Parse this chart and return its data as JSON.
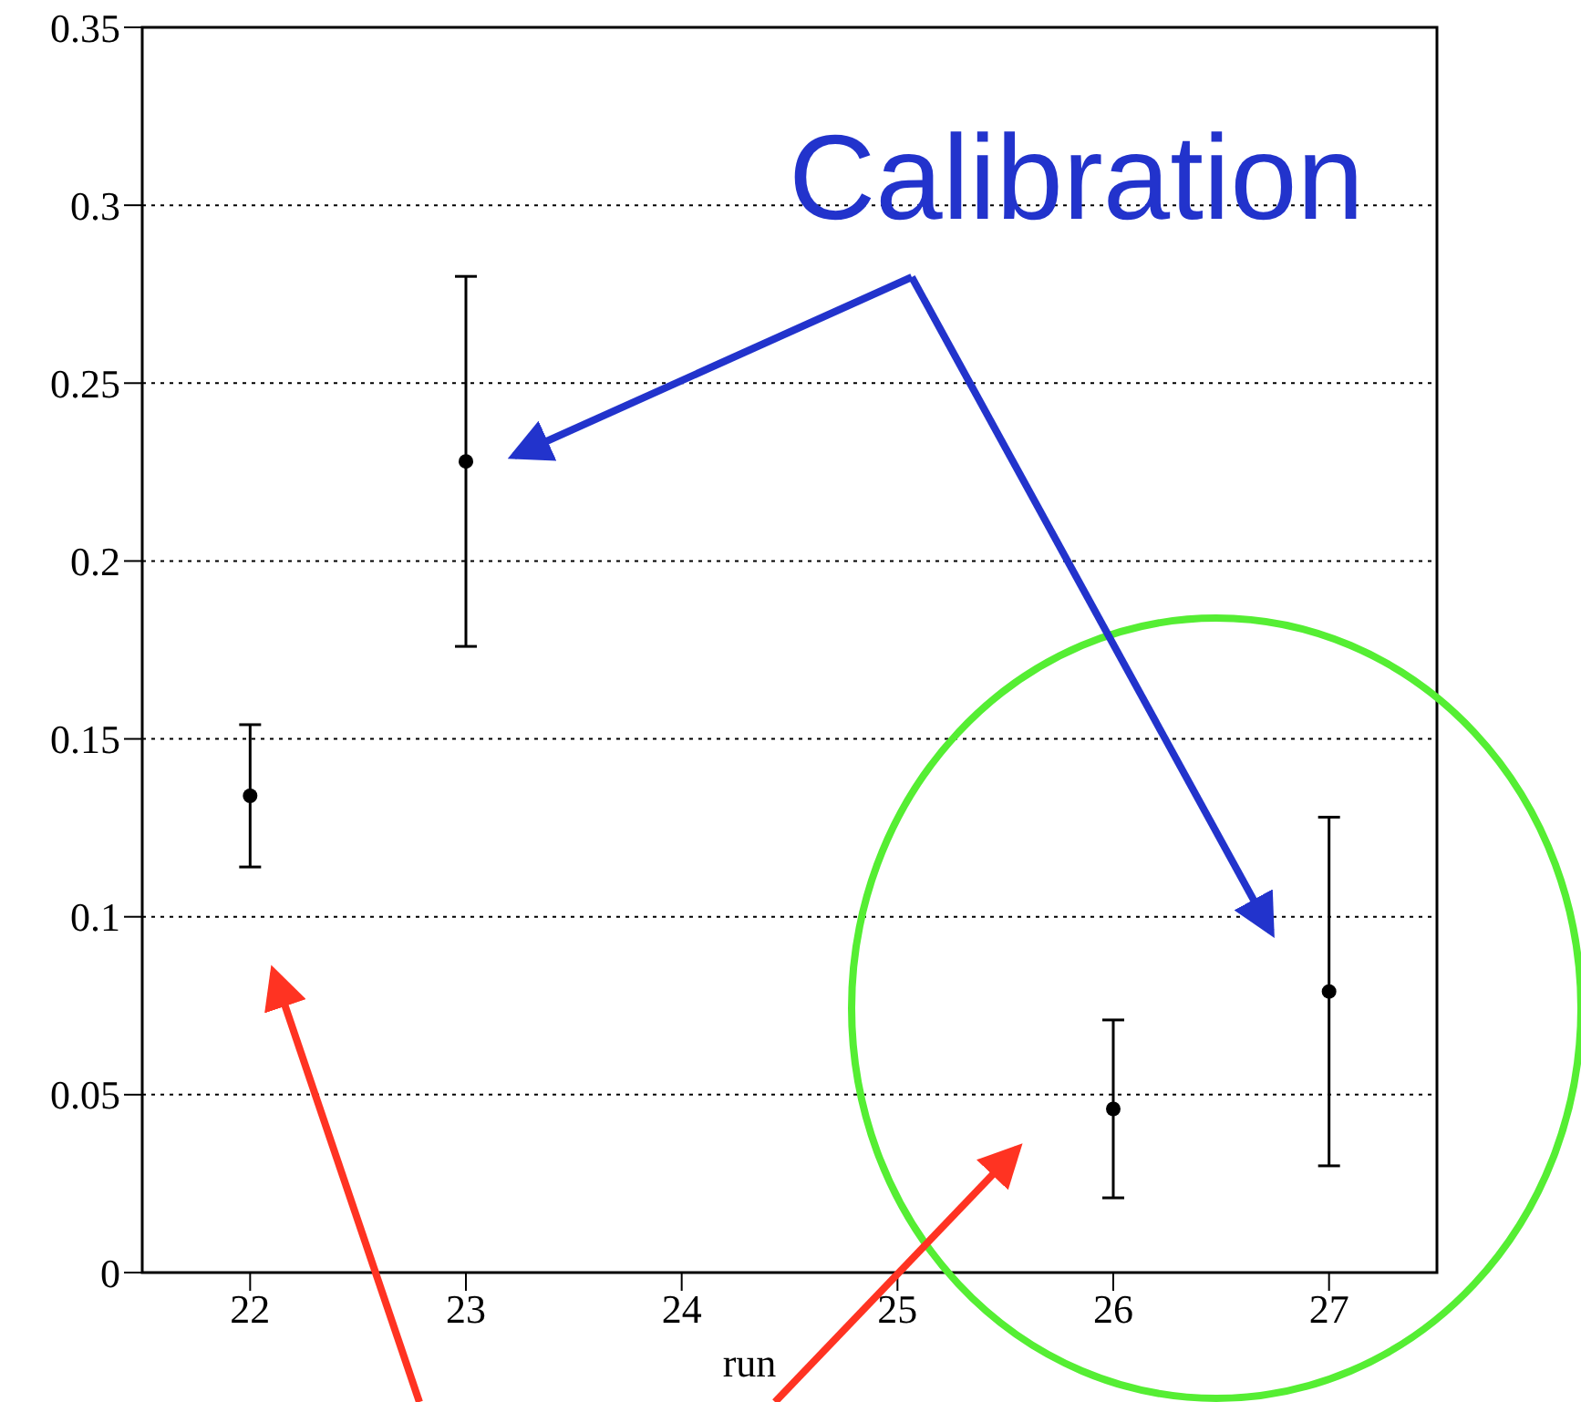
{
  "chart_data": {
    "type": "scatter",
    "xlabel": "run",
    "x": [
      22,
      23,
      26,
      27
    ],
    "values": [
      0.134,
      0.228,
      0.046,
      0.079
    ],
    "errors": [
      0.02,
      0.052,
      0.025,
      0.049
    ],
    "color": "#000000",
    "xlim": [
      21.5,
      27.5
    ],
    "xticks": [
      22,
      23,
      24,
      25,
      26,
      27
    ],
    "ylim": [
      0,
      0.35
    ],
    "yticks": [
      0,
      0.05,
      0.1,
      0.15,
      0.2,
      0.25,
      0.3,
      0.35
    ],
    "grid": "y",
    "marker": "circle",
    "annotations": [
      "Calibration"
    ]
  }
}
